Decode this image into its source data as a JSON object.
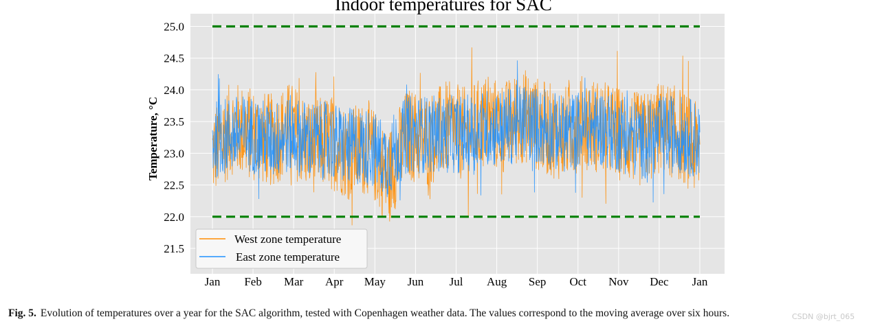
{
  "figure": {
    "caption_label": "Fig. 5.",
    "caption_text": "Evolution of temperatures over a year for the SAC algorithm, tested with Copenhagen weather data. The values correspond to the moving average over six hours.",
    "watermark": "CSDN @bjrt_065"
  },
  "chart_data": {
    "type": "line",
    "title": "Indoor temperatures for SAC",
    "xlabel": "",
    "ylabel": "Temperature, °C",
    "x_ticks": [
      "Jan",
      "Feb",
      "Mar",
      "Apr",
      "May",
      "Jun",
      "Jul",
      "Aug",
      "Sep",
      "Oct",
      "Nov",
      "Dec",
      "Jan"
    ],
    "y_ticks": [
      "21.5",
      "22.0",
      "22.5",
      "23.0",
      "23.5",
      "24.0",
      "24.5",
      "25.0"
    ],
    "ylim": [
      21.1,
      25.2
    ],
    "xlim": [
      "2021-12-29",
      "2023-01-04"
    ],
    "grid": true,
    "legend_position": "lower-left",
    "series": [
      {
        "name": "West zone temperature",
        "color": "#ff8c00",
        "values": [
          23.0,
          23.4,
          23.3,
          23.2,
          23.4,
          23.1,
          23.2,
          23.0,
          23.1,
          22.6,
          23.3,
          23.2,
          23.4,
          23.3,
          23.5,
          23.4,
          23.6,
          23.4,
          23.3,
          23.5,
          23.4,
          23.3,
          23.2,
          23.4,
          23.3,
          23.0
        ]
      },
      {
        "name": "East zone temperature",
        "color": "#1e90ff",
        "values": [
          23.2,
          23.3,
          23.3,
          23.2,
          23.3,
          23.2,
          23.2,
          23.1,
          23.1,
          22.9,
          23.3,
          23.3,
          23.3,
          23.3,
          23.4,
          23.4,
          23.5,
          23.4,
          23.3,
          23.4,
          23.4,
          23.3,
          23.2,
          23.3,
          23.3,
          23.2
        ]
      },
      {
        "name": "",
        "color": "#008000",
        "style": "dashed",
        "values": [
          25.0,
          25.0
        ]
      },
      {
        "name": "",
        "color": "#008000",
        "style": "dashed",
        "values": [
          22.0,
          22.0
        ]
      }
    ]
  }
}
